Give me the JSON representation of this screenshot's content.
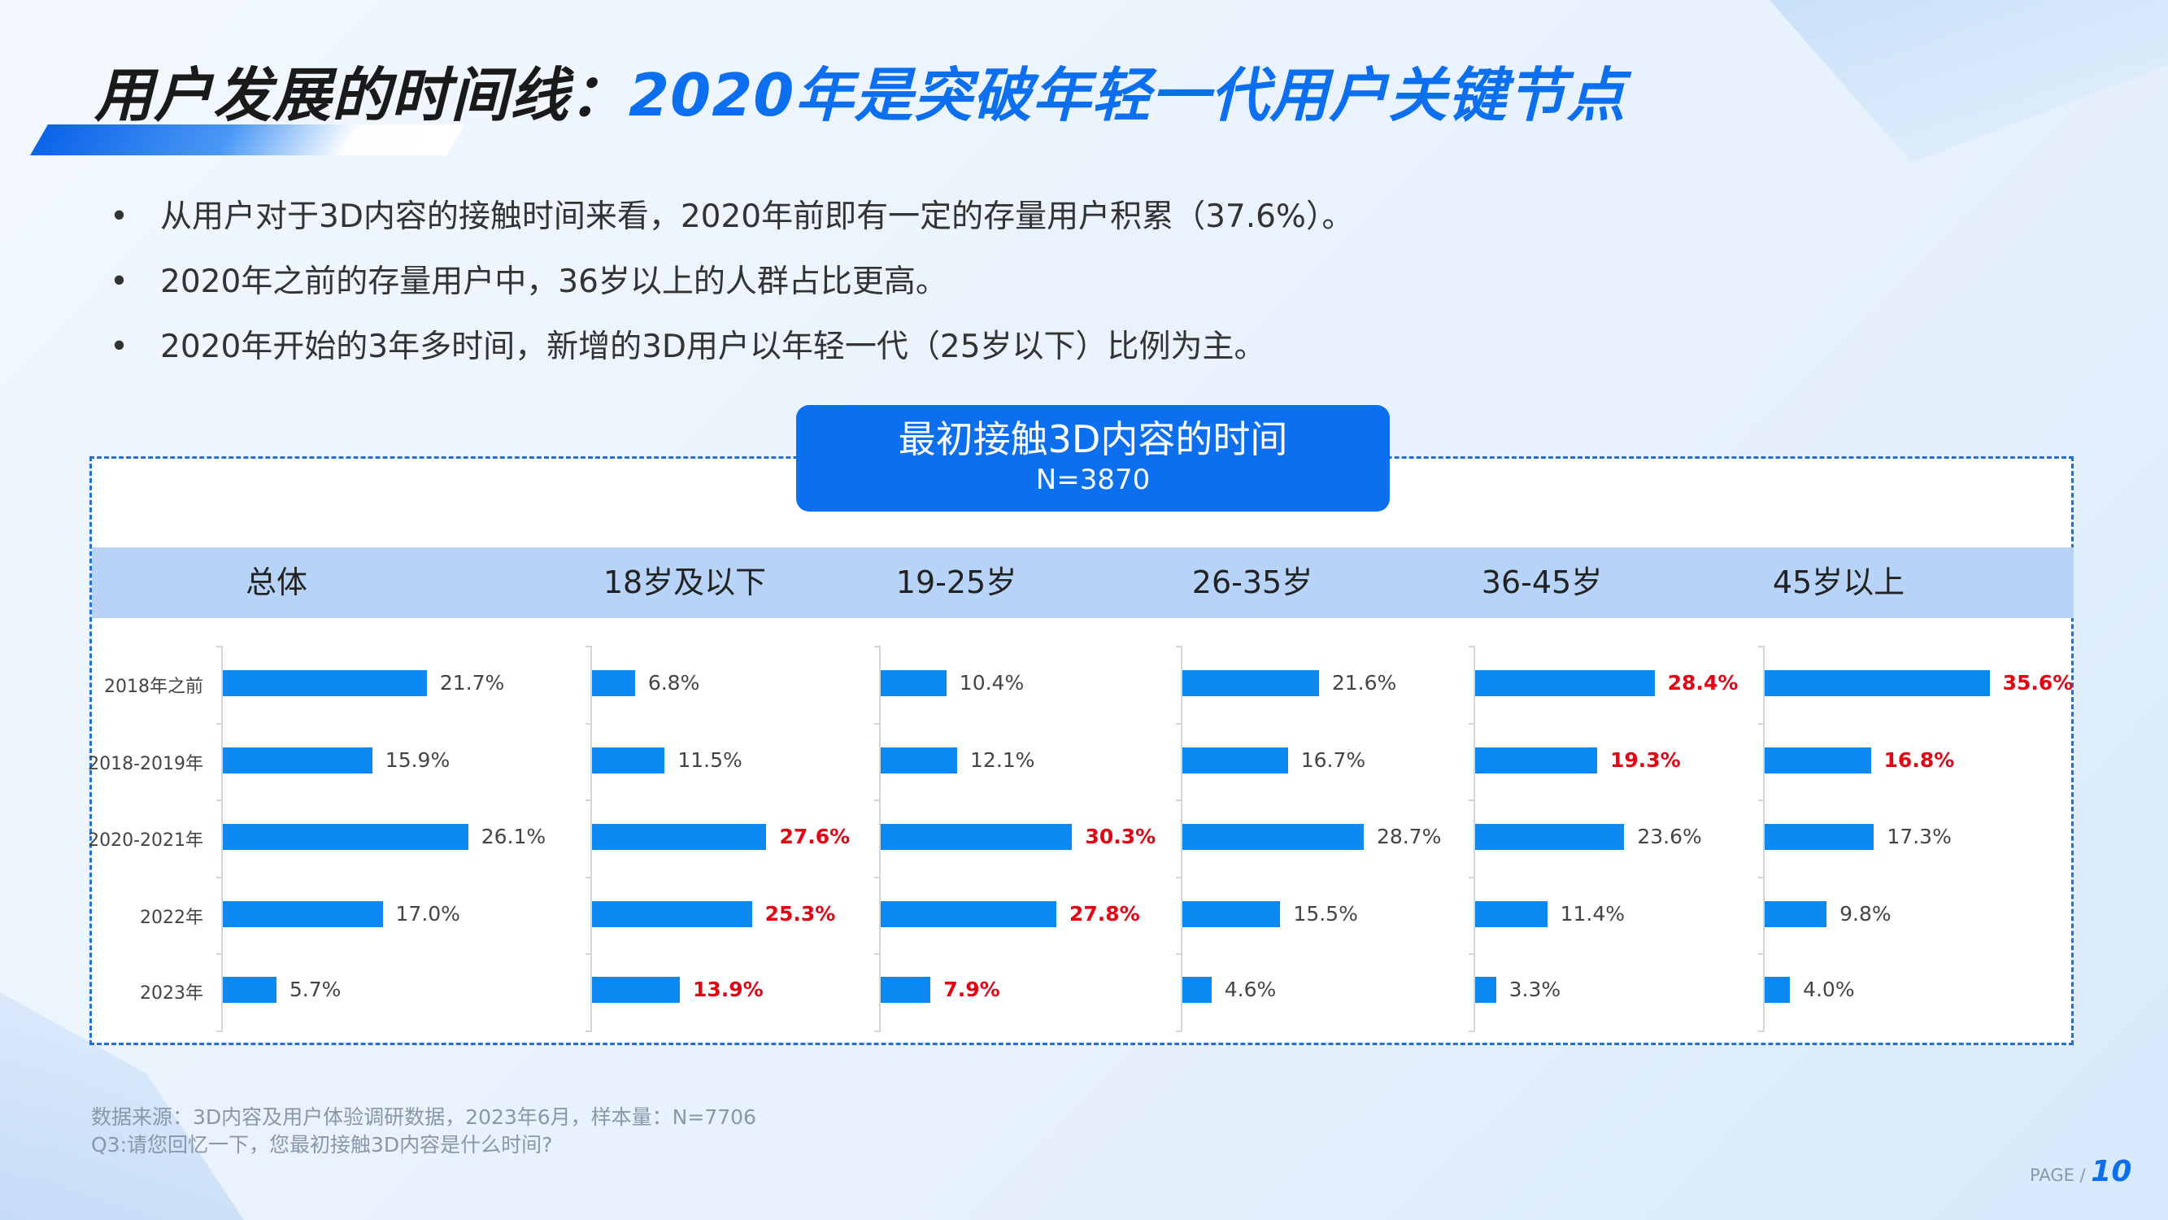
{
  "title": {
    "part1": "用户发展的时间线：",
    "part2": "2020年是突破年轻一代用户关键节点"
  },
  "bullets": [
    "从用户对于3D内容的接触时间来看，2020年前即有一定的存量用户积累（37.6%）。",
    "2020年之前的存量用户中，36岁以上的人群占比更高。",
    "2020年开始的3年多时间，新增的3D用户以年轻一代（25岁以下）比例为主。"
  ],
  "chart_header": {
    "title": "最初接触3D内容的时间",
    "sample": "N=3870"
  },
  "chart_data": {
    "type": "bar",
    "orientation": "horizontal",
    "title": "最初接触3D内容的时间",
    "subtitle": "N=3870",
    "categories": [
      "2018年之前",
      "2018-2019年",
      "2020-2021年",
      "2022年",
      "2023年"
    ],
    "unit": "%",
    "highlight_color": "#e60012",
    "bar_color": "#0a8af0",
    "groups": [
      {
        "name": "总体",
        "values": [
          21.7,
          15.9,
          26.1,
          17.0,
          5.7
        ],
        "labels": [
          "21.7%",
          "15.9%",
          "26.1%",
          "17.0%",
          "5.7%"
        ],
        "highlight": [
          false,
          false,
          false,
          false,
          false
        ]
      },
      {
        "name": "18岁及以下",
        "values": [
          6.8,
          11.5,
          27.6,
          25.3,
          13.9
        ],
        "labels": [
          "6.8%",
          "11.5%",
          "27.6%",
          "25.3%",
          "13.9%"
        ],
        "highlight": [
          false,
          false,
          true,
          true,
          true
        ]
      },
      {
        "name": "19-25岁",
        "values": [
          10.4,
          12.1,
          30.3,
          27.8,
          7.9
        ],
        "labels": [
          "10.4%",
          "12.1%",
          "30.3%",
          "27.8%",
          "7.9%"
        ],
        "highlight": [
          false,
          false,
          true,
          true,
          true
        ]
      },
      {
        "name": "26-35岁",
        "values": [
          21.6,
          16.7,
          28.7,
          15.5,
          4.6
        ],
        "labels": [
          "21.6%",
          "16.7%",
          "28.7%",
          "15.5%",
          "4.6%"
        ],
        "highlight": [
          false,
          false,
          false,
          false,
          false
        ]
      },
      {
        "name": "36-45岁",
        "values": [
          28.4,
          19.3,
          23.6,
          11.4,
          3.3
        ],
        "labels": [
          "28.4%",
          "19.3%",
          "23.6%",
          "11.4%",
          "3.3%"
        ],
        "highlight": [
          true,
          true,
          false,
          false,
          false
        ]
      },
      {
        "name": "45岁以上",
        "values": [
          35.6,
          16.8,
          17.3,
          9.8,
          4.0
        ],
        "labels": [
          "35.6%",
          "16.8%",
          "17.3%",
          "9.8%",
          "4.0%"
        ],
        "highlight": [
          true,
          true,
          false,
          false,
          false
        ]
      }
    ]
  },
  "footer": {
    "source": "数据来源：3D内容及用户体验调研数据，2023年6月，样本量：N=7706",
    "question": "Q3:请您回忆一下，您最初接触3D内容是什么时间?"
  },
  "page": {
    "label": "PAGE / ",
    "number": "10"
  }
}
